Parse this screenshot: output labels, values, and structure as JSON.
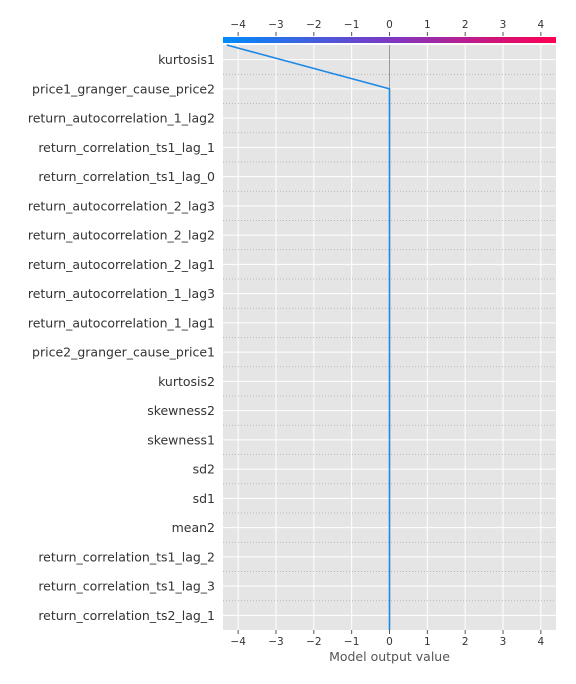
{
  "chart_data": {
    "type": "line",
    "subtype": "shap-decision-plot",
    "xlabel": "Model output value",
    "xlim": [
      -4.4,
      4.4
    ],
    "xticks": [
      -4,
      -3,
      -2,
      -1,
      0,
      1,
      2,
      3,
      4
    ],
    "xtick_labels": [
      "−4",
      "−3",
      "−2",
      "−1",
      "0",
      "1",
      "2",
      "3",
      "4"
    ],
    "grid": true,
    "base_value": 0,
    "colormap": [
      "#008bfb",
      "#7c38c4",
      "#ff0051"
    ],
    "features": [
      "kurtosis1",
      "price1_granger_cause_price2",
      "return_autocorrelation_1_lag2",
      "return_correlation_ts1_lag_1",
      "return_correlation_ts1_lag_0",
      "return_autocorrelation_2_lag3",
      "return_autocorrelation_2_lag2",
      "return_autocorrelation_2_lag1",
      "return_autocorrelation_1_lag3",
      "return_autocorrelation_1_lag1",
      "price2_granger_cause_price1",
      "kurtosis2",
      "skewness2",
      "skewness1",
      "sd2",
      "sd1",
      "mean2",
      "return_correlation_ts1_lag_2",
      "return_correlation_ts1_lag_3",
      "return_correlation_ts2_lag_1"
    ],
    "series": [
      {
        "color": "#1e88e5",
        "values": [
          -4.3,
          0,
          0,
          0,
          0,
          0,
          0,
          0,
          0,
          0,
          0,
          0,
          0,
          0,
          0,
          0,
          0,
          0,
          0,
          0,
          0
        ]
      }
    ]
  }
}
